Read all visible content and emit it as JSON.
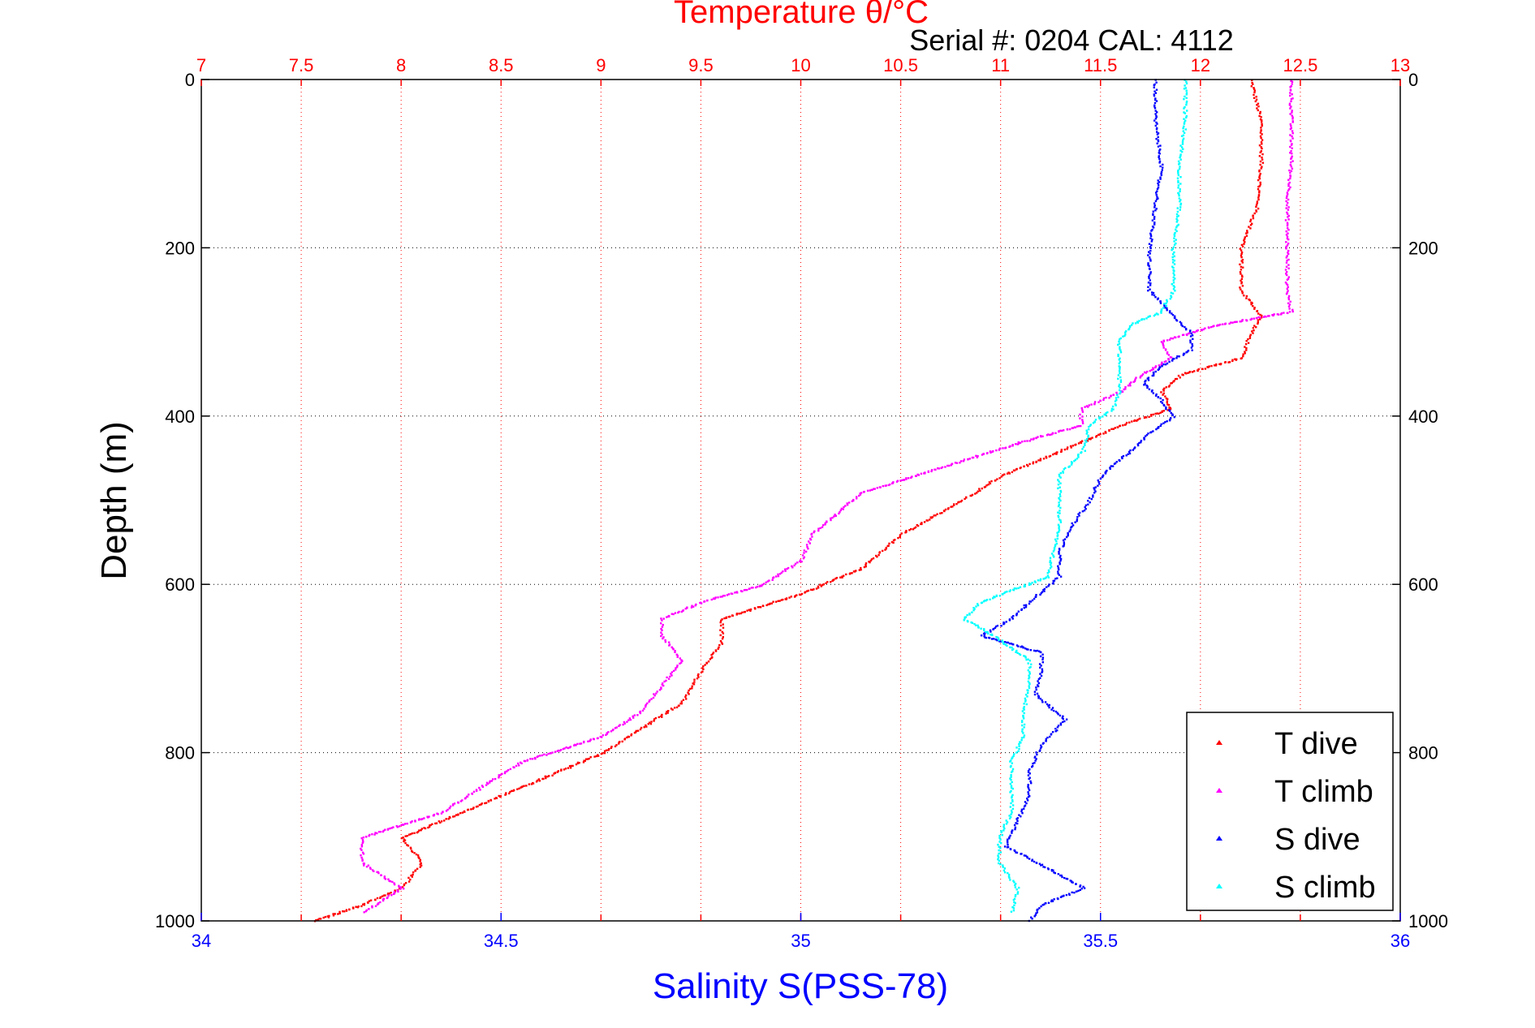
{
  "chart_data": {
    "type": "scatter",
    "title": "Temperature θ/°C",
    "subtitle": "Serial #: 0204  CAL: 4112",
    "xlabel": "Salinity S(PSS-78)",
    "ylabel": "Depth (m)",
    "temperature_axis": {
      "range": [
        7,
        13
      ],
      "ticks": [
        "7",
        "7.5",
        "8",
        "8.5",
        "9",
        "9.5",
        "10",
        "10.5",
        "11",
        "11.5",
        "12",
        "12.5",
        "13"
      ]
    },
    "salinity_axis": {
      "range": [
        34,
        36
      ],
      "ticks": [
        "34",
        "34.5",
        "35",
        "35.5",
        "36"
      ]
    },
    "depth_axis": {
      "range": [
        0,
        1000
      ],
      "reversed": true,
      "ticks": [
        "0",
        "200",
        "400",
        "600",
        "800",
        "1000"
      ]
    },
    "grid": true,
    "legend_position": "bottom-right",
    "colors": {
      "temperature_axis": "#ff0000",
      "salinity_axis": "#0000ff",
      "t_dive": "#ff0000",
      "t_climb": "#ff00ff",
      "s_dive": "#0000ff",
      "s_climb": "#00ffff"
    },
    "series": [
      {
        "name": "T dive",
        "axis": "temperature",
        "color": "#ff0000",
        "depth": [
          0,
          50,
          100,
          150,
          200,
          250,
          280,
          300,
          330,
          350,
          370,
          390,
          410,
          440,
          470,
          500,
          540,
          580,
          610,
          640,
          670,
          700,
          740,
          770,
          800,
          840,
          870,
          900,
          930,
          960,
          980,
          1000
        ],
        "values": [
          12.25,
          12.3,
          12.3,
          12.28,
          12.2,
          12.2,
          12.3,
          12.25,
          12.2,
          11.9,
          11.8,
          11.85,
          11.6,
          11.3,
          11.0,
          10.8,
          10.5,
          10.3,
          10.0,
          9.6,
          9.6,
          9.5,
          9.4,
          9.2,
          9.0,
          8.6,
          8.3,
          8.0,
          8.1,
          8.0,
          7.8,
          7.55
        ]
      },
      {
        "name": "T climb",
        "axis": "temperature",
        "color": "#ff00ff",
        "depth": [
          0,
          50,
          100,
          150,
          200,
          250,
          275,
          290,
          310,
          330,
          350,
          370,
          390,
          410,
          430,
          460,
          490,
          510,
          540,
          570,
          600,
          620,
          640,
          660,
          690,
          720,
          750,
          780,
          810,
          840,
          870,
          900,
          930,
          960,
          990
        ],
        "values": [
          12.45,
          12.45,
          12.45,
          12.43,
          12.43,
          12.43,
          12.45,
          12.1,
          11.8,
          11.85,
          11.7,
          11.6,
          11.4,
          11.4,
          11.1,
          10.7,
          10.3,
          10.2,
          10.05,
          10.0,
          9.8,
          9.5,
          9.3,
          9.3,
          9.4,
          9.3,
          9.2,
          9.0,
          8.6,
          8.4,
          8.2,
          7.8,
          7.8,
          8.0,
          7.8
        ]
      },
      {
        "name": "S dive",
        "axis": "salinity",
        "color": "#0000ff",
        "depth": [
          0,
          50,
          100,
          150,
          200,
          250,
          280,
          300,
          320,
          340,
          360,
          380,
          400,
          420,
          440,
          470,
          500,
          530,
          560,
          590,
          620,
          640,
          660,
          680,
          700,
          730,
          760,
          790,
          820,
          850,
          880,
          910,
          940,
          960,
          980,
          1000
        ],
        "values": [
          35.59,
          35.59,
          35.6,
          35.59,
          35.58,
          35.58,
          35.62,
          35.65,
          35.65,
          35.6,
          35.57,
          35.6,
          35.62,
          35.58,
          35.55,
          35.5,
          35.48,
          35.45,
          35.43,
          35.43,
          35.38,
          35.35,
          35.3,
          35.4,
          35.4,
          35.39,
          35.44,
          35.4,
          35.38,
          35.38,
          35.36,
          35.34,
          35.42,
          35.47,
          35.4,
          35.38
        ]
      },
      {
        "name": "S climb",
        "axis": "salinity",
        "color": "#00ffff",
        "depth": [
          0,
          50,
          100,
          150,
          200,
          250,
          275,
          290,
          310,
          330,
          350,
          370,
          390,
          410,
          440,
          470,
          500,
          530,
          560,
          590,
          620,
          640,
          660,
          690,
          720,
          750,
          780,
          810,
          840,
          870,
          900,
          930,
          960,
          990
        ],
        "values": [
          35.64,
          35.64,
          35.63,
          35.63,
          35.62,
          35.62,
          35.6,
          35.55,
          35.53,
          35.53,
          35.53,
          35.53,
          35.52,
          35.48,
          35.47,
          35.43,
          35.43,
          35.43,
          35.42,
          35.41,
          35.3,
          35.27,
          35.32,
          35.38,
          35.38,
          35.37,
          35.37,
          35.35,
          35.35,
          35.35,
          35.33,
          35.33,
          35.36,
          35.35
        ]
      }
    ]
  }
}
